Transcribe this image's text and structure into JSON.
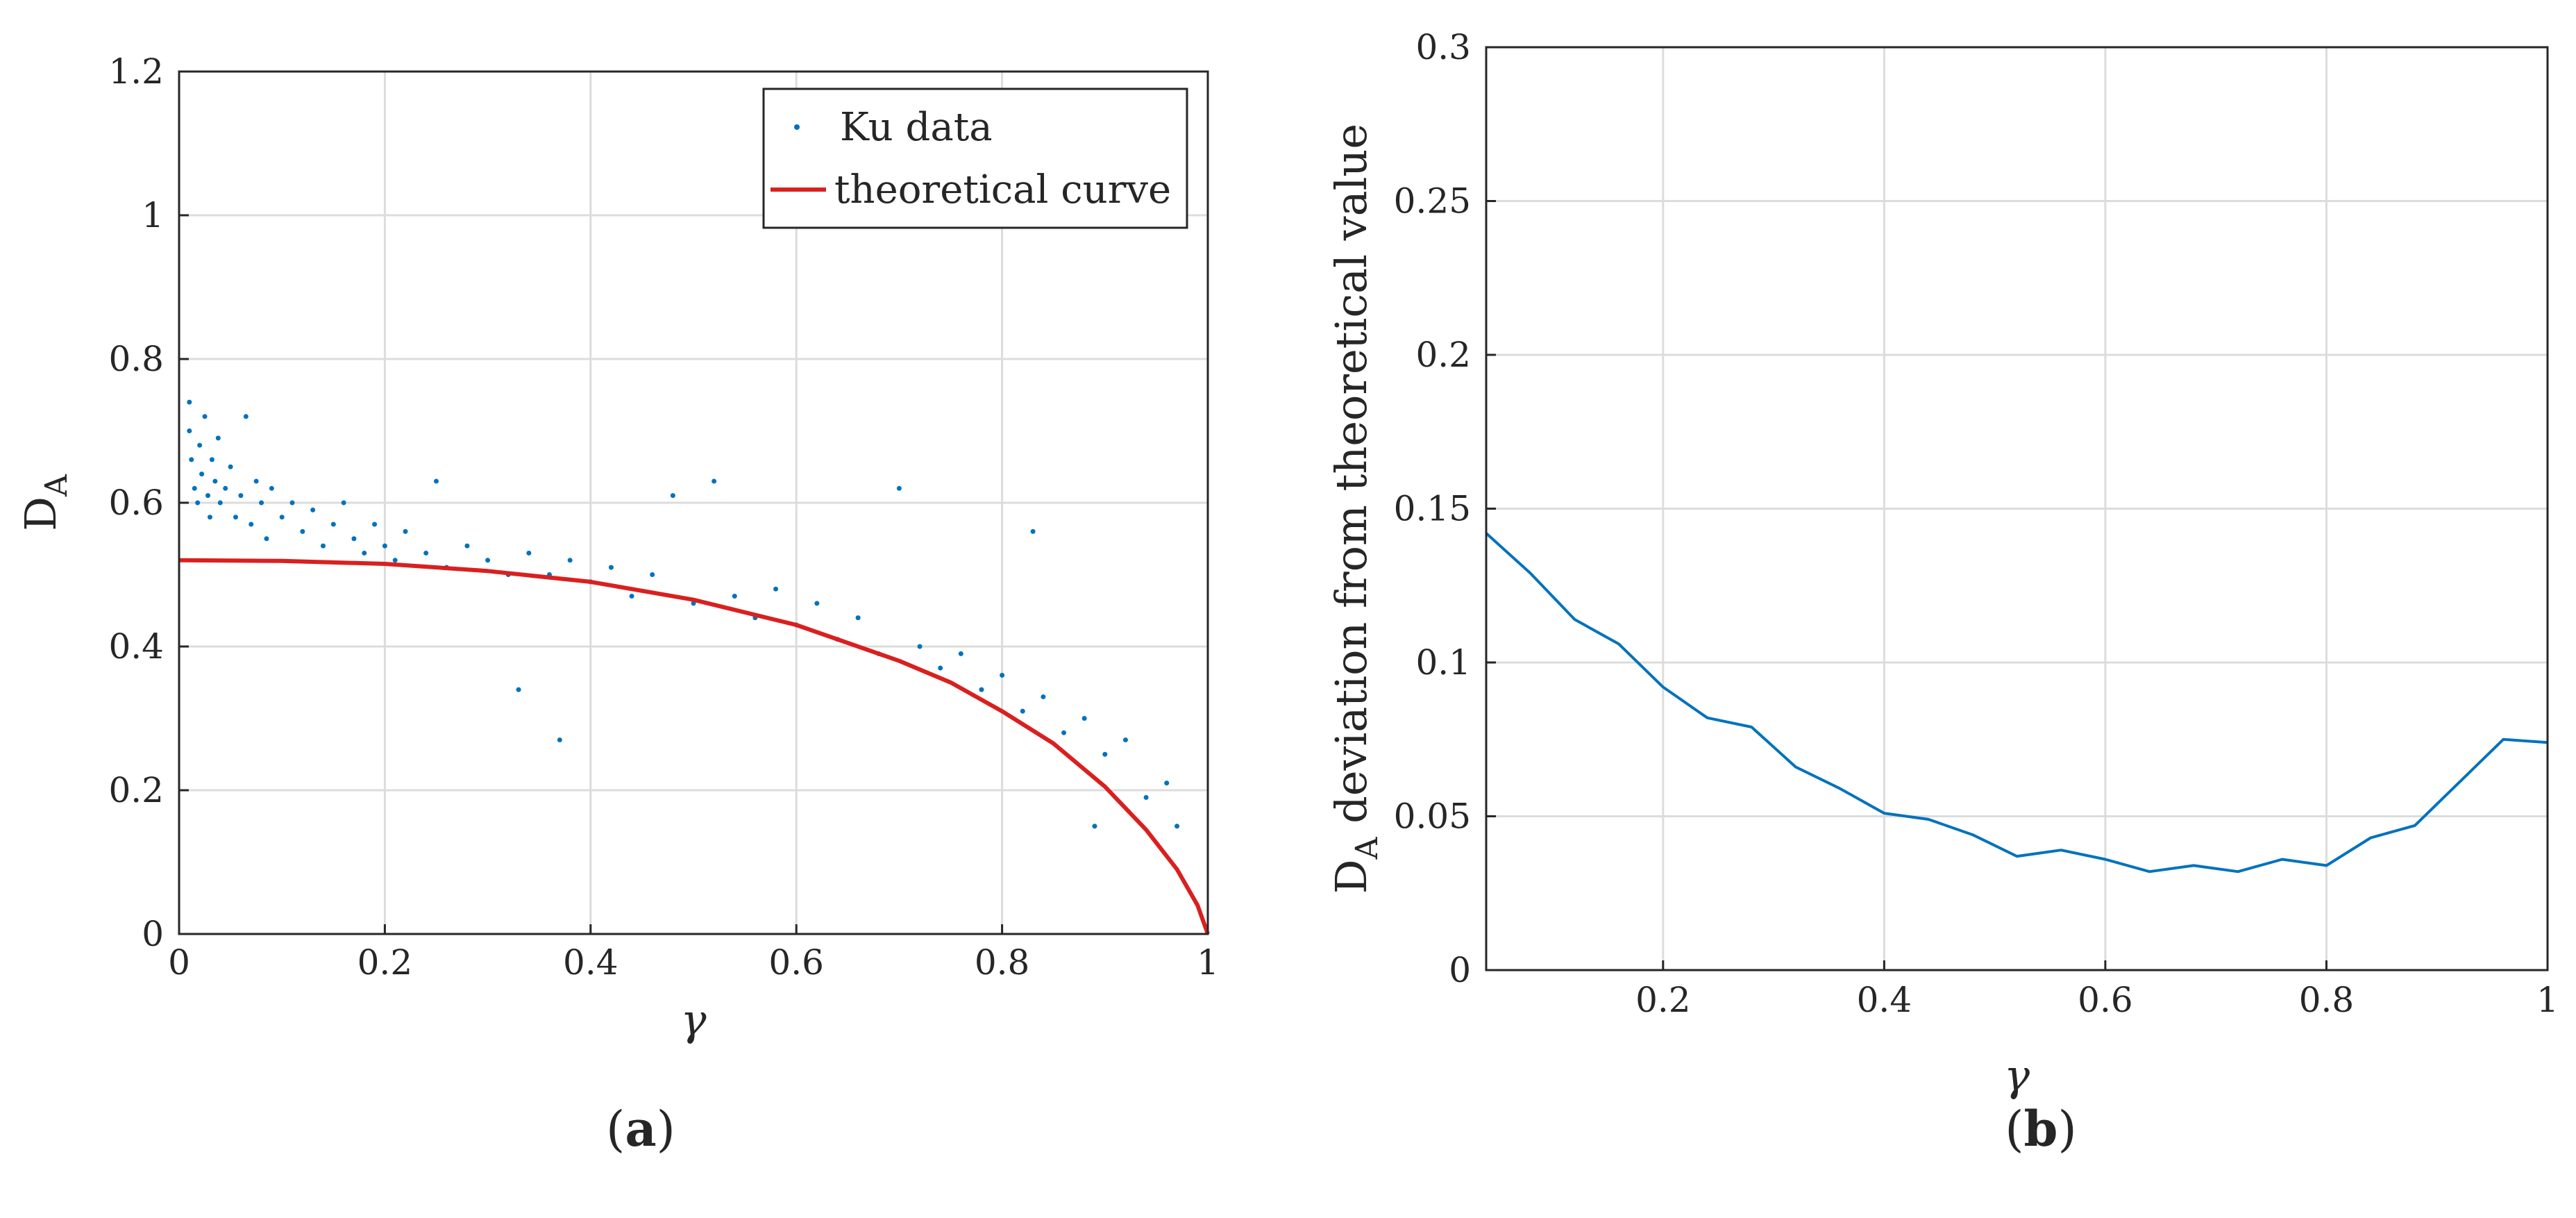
{
  "chart_data": [
    {
      "id": "a",
      "type": "scatter",
      "caption": {
        "open": "(",
        "letter": "a",
        "close": ")"
      },
      "xlabel": "γ",
      "ylabel": {
        "main": "D",
        "sub": "A"
      },
      "xlim": [
        0,
        1
      ],
      "ylim": [
        0,
        1.2
      ],
      "xticks": [
        0,
        0.2,
        0.4,
        0.6,
        0.8,
        1
      ],
      "xtick_labels": [
        "0",
        "0.2",
        "0.4",
        "0.6",
        "0.8",
        "1"
      ],
      "yticks": [
        0,
        0.2,
        0.4,
        0.6,
        0.8,
        1,
        1.2
      ],
      "ytick_labels": [
        "0",
        "0.2",
        "0.4",
        "0.6",
        "0.8",
        "1",
        "1.2"
      ],
      "grid": true,
      "legend": {
        "placement": "top-right",
        "entries": [
          "Ku data",
          "theoretical curve"
        ]
      },
      "series": [
        {
          "name": "Ku data",
          "kind": "points",
          "color": "#0072BD",
          "points": [
            [
              0.01,
              0.74
            ],
            [
              0.01,
              0.7
            ],
            [
              0.012,
              0.66
            ],
            [
              0.015,
              0.62
            ],
            [
              0.018,
              0.6
            ],
            [
              0.02,
              0.68
            ],
            [
              0.022,
              0.64
            ],
            [
              0.025,
              0.72
            ],
            [
              0.028,
              0.61
            ],
            [
              0.03,
              0.58
            ],
            [
              0.032,
              0.66
            ],
            [
              0.035,
              0.63
            ],
            [
              0.038,
              0.69
            ],
            [
              0.04,
              0.6
            ],
            [
              0.045,
              0.62
            ],
            [
              0.05,
              0.65
            ],
            [
              0.055,
              0.58
            ],
            [
              0.06,
              0.61
            ],
            [
              0.065,
              0.72
            ],
            [
              0.07,
              0.57
            ],
            [
              0.075,
              0.63
            ],
            [
              0.08,
              0.6
            ],
            [
              0.085,
              0.55
            ],
            [
              0.09,
              0.62
            ],
            [
              0.1,
              0.58
            ],
            [
              0.11,
              0.6
            ],
            [
              0.12,
              0.56
            ],
            [
              0.13,
              0.59
            ],
            [
              0.14,
              0.54
            ],
            [
              0.15,
              0.57
            ],
            [
              0.16,
              0.6
            ],
            [
              0.17,
              0.55
            ],
            [
              0.18,
              0.53
            ],
            [
              0.19,
              0.57
            ],
            [
              0.2,
              0.54
            ],
            [
              0.21,
              0.52
            ],
            [
              0.22,
              0.56
            ],
            [
              0.24,
              0.53
            ],
            [
              0.25,
              0.63
            ],
            [
              0.26,
              0.51
            ],
            [
              0.28,
              0.54
            ],
            [
              0.3,
              0.52
            ],
            [
              0.32,
              0.5
            ],
            [
              0.33,
              0.34
            ],
            [
              0.34,
              0.53
            ],
            [
              0.36,
              0.5
            ],
            [
              0.37,
              0.27
            ],
            [
              0.38,
              0.52
            ],
            [
              0.4,
              0.49
            ],
            [
              0.42,
              0.51
            ],
            [
              0.44,
              0.47
            ],
            [
              0.46,
              0.5
            ],
            [
              0.48,
              0.61
            ],
            [
              0.5,
              0.46
            ],
            [
              0.52,
              0.63
            ],
            [
              0.54,
              0.47
            ],
            [
              0.56,
              0.44
            ],
            [
              0.58,
              0.48
            ],
            [
              0.6,
              0.43
            ],
            [
              0.62,
              0.46
            ],
            [
              0.64,
              0.41
            ],
            [
              0.66,
              0.44
            ],
            [
              0.68,
              0.39
            ],
            [
              0.7,
              0.62
            ],
            [
              0.72,
              0.4
            ],
            [
              0.74,
              0.37
            ],
            [
              0.76,
              0.39
            ],
            [
              0.78,
              0.34
            ],
            [
              0.8,
              0.36
            ],
            [
              0.82,
              0.31
            ],
            [
              0.83,
              0.56
            ],
            [
              0.84,
              0.33
            ],
            [
              0.86,
              0.28
            ],
            [
              0.88,
              0.3
            ],
            [
              0.89,
              0.15
            ],
            [
              0.9,
              0.25
            ],
            [
              0.92,
              0.27
            ],
            [
              0.94,
              0.19
            ],
            [
              0.96,
              0.21
            ],
            [
              0.97,
              0.15
            ]
          ]
        },
        {
          "name": "theoretical curve",
          "kind": "line",
          "color": "#D9201F",
          "points": [
            [
              0,
              0.52
            ],
            [
              0.1,
              0.519
            ],
            [
              0.2,
              0.515
            ],
            [
              0.3,
              0.505
            ],
            [
              0.4,
              0.49
            ],
            [
              0.5,
              0.465
            ],
            [
              0.6,
              0.43
            ],
            [
              0.7,
              0.38
            ],
            [
              0.75,
              0.35
            ],
            [
              0.8,
              0.31
            ],
            [
              0.85,
              0.265
            ],
            [
              0.9,
              0.205
            ],
            [
              0.94,
              0.145
            ],
            [
              0.97,
              0.09
            ],
            [
              0.99,
              0.04
            ],
            [
              1,
              0
            ]
          ]
        }
      ]
    },
    {
      "id": "b",
      "type": "line",
      "caption": {
        "open": "(",
        "letter": "b",
        "close": ")"
      },
      "xlabel": "γ",
      "ylabel": {
        "main": "D",
        "sub": "A",
        "rest": " deviation from theoretical value"
      },
      "xlim": [
        0.04,
        1
      ],
      "ylim": [
        0,
        0.3
      ],
      "xticks": [
        0.2,
        0.4,
        0.6,
        0.8,
        1
      ],
      "xtick_labels": [
        "0.2",
        "0.4",
        "0.6",
        "0.8",
        "1"
      ],
      "yticks": [
        0,
        0.05,
        0.1,
        0.15,
        0.2,
        0.25,
        0.3
      ],
      "ytick_labels": [
        "0",
        "0.05",
        "0.1",
        "0.15",
        "0.2",
        "0.25",
        "0.3"
      ],
      "grid": true,
      "series": [
        {
          "name": "deviation",
          "kind": "line",
          "color": "#0072BD",
          "points": [
            [
              0.04,
              0.142
            ],
            [
              0.08,
              0.129
            ],
            [
              0.12,
              0.114
            ],
            [
              0.16,
              0.106
            ],
            [
              0.2,
              0.092
            ],
            [
              0.24,
              0.082
            ],
            [
              0.28,
              0.079
            ],
            [
              0.32,
              0.066
            ],
            [
              0.36,
              0.059
            ],
            [
              0.4,
              0.051
            ],
            [
              0.44,
              0.049
            ],
            [
              0.48,
              0.044
            ],
            [
              0.52,
              0.037
            ],
            [
              0.56,
              0.039
            ],
            [
              0.6,
              0.036
            ],
            [
              0.64,
              0.032
            ],
            [
              0.68,
              0.034
            ],
            [
              0.72,
              0.032
            ],
            [
              0.76,
              0.036
            ],
            [
              0.8,
              0.034
            ],
            [
              0.84,
              0.043
            ],
            [
              0.88,
              0.047
            ],
            [
              0.92,
              0.061
            ],
            [
              0.96,
              0.075
            ],
            [
              1,
              0.074
            ]
          ]
        }
      ]
    }
  ]
}
